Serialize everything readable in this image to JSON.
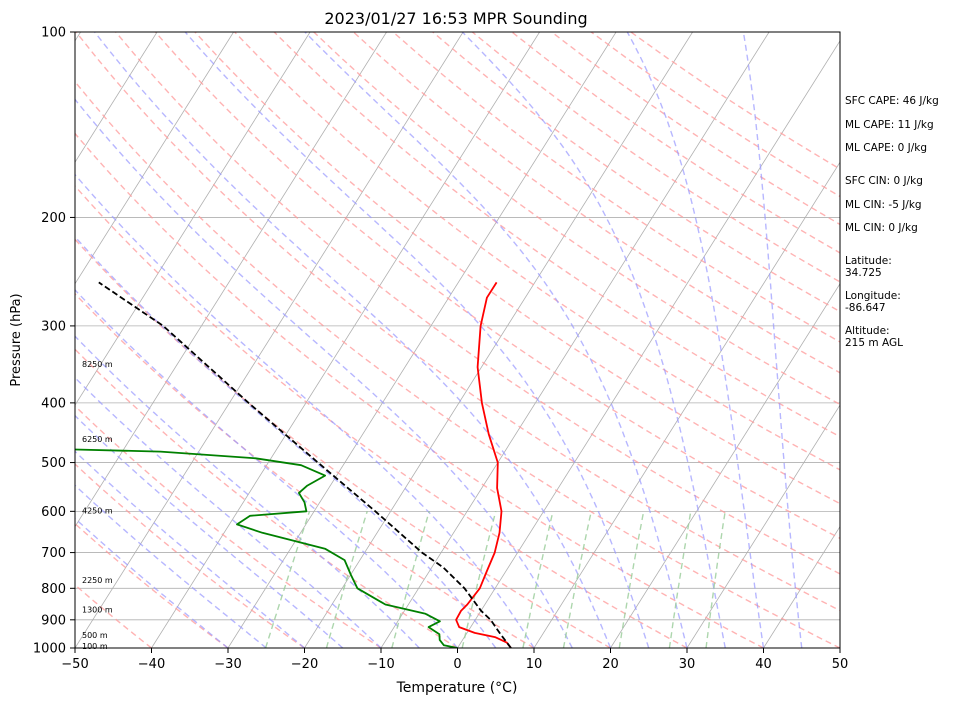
{
  "chart_data": {
    "type": "line",
    "subtype": "skew-t log-p sounding",
    "title": "2023/01/27 16:53 MPR Sounding",
    "xlabel": "Temperature (°C)",
    "ylabel": "Pressure (hPa)",
    "xlim": [
      -50,
      50
    ],
    "ylim": [
      1000,
      100
    ],
    "y_scale": "log",
    "x_ticks": [
      -50,
      -40,
      -30,
      -20,
      -10,
      0,
      10,
      20,
      30,
      40,
      50
    ],
    "x_tick_labels": [
      "−50",
      "−40",
      "−30",
      "−20",
      "−10",
      "0",
      "10",
      "20",
      "30",
      "40",
      "50"
    ],
    "y_ticks": [
      100,
      200,
      300,
      400,
      500,
      600,
      700,
      800,
      900,
      1000
    ],
    "y_tick_labels": [
      "100",
      "200",
      "300",
      "400",
      "500",
      "600",
      "700",
      "800",
      "900",
      "1000"
    ],
    "height_labels": [
      {
        "text": "8250 m",
        "pressure": 346
      },
      {
        "text": "6250 m",
        "pressure": 458
      },
      {
        "text": "4250 m",
        "pressure": 598
      },
      {
        "text": "2250 m",
        "pressure": 776
      },
      {
        "text": "1300 m",
        "pressure": 866
      },
      {
        "text": "500 m",
        "pressure": 953
      },
      {
        "text": "100 m",
        "pressure": 993
      }
    ],
    "series": [
      {
        "color": "#ff0000",
        "points": [
          [
            7.0,
            1000
          ],
          [
            6.0,
            980
          ],
          [
            4.0,
            960
          ],
          [
            1.0,
            945
          ],
          [
            -1.5,
            925
          ],
          [
            -2.5,
            900
          ],
          [
            -2.6,
            870
          ],
          [
            -2.3,
            850
          ],
          [
            -2.0,
            800
          ],
          [
            -2.5,
            750
          ],
          [
            -3.0,
            700
          ],
          [
            -4.0,
            650
          ],
          [
            -5.5,
            600
          ],
          [
            -8.0,
            550
          ],
          [
            -10.0,
            500
          ],
          [
            -13.5,
            450
          ],
          [
            -17.0,
            400
          ],
          [
            -20.5,
            350
          ],
          [
            -23.5,
            300
          ],
          [
            -25.0,
            270
          ],
          [
            -25.0,
            255
          ]
        ]
      },
      {
        "color": "#008000",
        "points": [
          [
            0.0,
            1000
          ],
          [
            -2.0,
            990
          ],
          [
            -3.0,
            970
          ],
          [
            -3.5,
            950
          ],
          [
            -5.5,
            925
          ],
          [
            -4.5,
            905
          ],
          [
            -7.0,
            880
          ],
          [
            -13.0,
            850
          ],
          [
            -18.0,
            800
          ],
          [
            -20.0,
            760
          ],
          [
            -22.0,
            720
          ],
          [
            -25.5,
            690
          ],
          [
            -35.0,
            650
          ],
          [
            -39.0,
            630
          ],
          [
            -38.0,
            610
          ],
          [
            -31.0,
            600
          ],
          [
            -32.0,
            580
          ],
          [
            -33.5,
            560
          ],
          [
            -33.0,
            545
          ],
          [
            -31.5,
            525
          ],
          [
            -35.5,
            505
          ],
          [
            -42.0,
            492
          ],
          [
            -55.0,
            480
          ],
          [
            -70.0,
            475
          ]
        ]
      },
      {
        "color": "#000000",
        "dashed": true,
        "points": [
          [
            7.0,
            1000
          ],
          [
            4.5,
            950
          ],
          [
            2.0,
            900
          ],
          [
            0.0,
            870
          ],
          [
            -4.0,
            800
          ],
          [
            -8.5,
            740
          ],
          [
            -12.5,
            700
          ],
          [
            -22.0,
            600
          ],
          [
            -33.5,
            500
          ],
          [
            -47.5,
            400
          ],
          [
            -65.0,
            300
          ],
          [
            -77.0,
            255
          ]
        ]
      }
    ],
    "info_lines": [
      "SFC CAPE: 46 J/kg",
      "ML CAPE: 11 J/kg",
      "ML CAPE: 0 J/kg",
      "SFC CIN: 0 J/kg",
      "ML CIN: -5 J/kg",
      "ML CIN: 0 J/kg",
      "Latitude:",
      "34.725",
      "Longitude:",
      "-86.647",
      "Altitude:",
      "215 m AGL"
    ],
    "colors": {
      "isotherm": "#b0b0b0",
      "isobar": "#b0b0b0",
      "dry_adiabat": "#ff9999",
      "moist_adiabat": "#9999ff",
      "mixing_ratio": "#99cc99",
      "temperature": "#ff0000",
      "dewpoint": "#008000",
      "parcel": "#000000"
    }
  }
}
